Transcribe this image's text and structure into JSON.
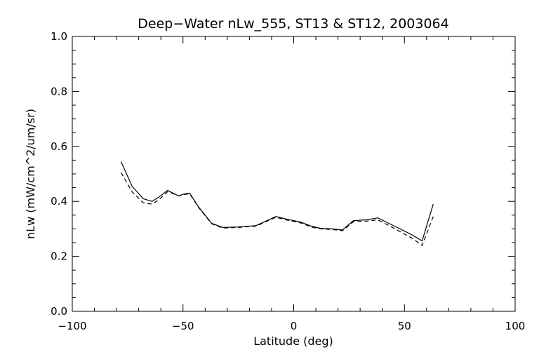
{
  "chart_data": {
    "type": "line",
    "title": "Deep−Water nLw_555, ST13 & ST12, 2003064",
    "xlabel": "Latitude (deg)",
    "ylabel": "nLw (mW/cm^2/um/sr)",
    "xlim": [
      -100,
      100
    ],
    "ylim": [
      0.0,
      1.0
    ],
    "x_ticks": [
      -100,
      -50,
      0,
      50,
      100
    ],
    "x_tick_labels": [
      "−100",
      "−50",
      "0",
      "50",
      "100"
    ],
    "y_ticks": [
      0.0,
      0.2,
      0.4,
      0.6,
      0.8,
      1.0
    ],
    "y_tick_labels": [
      "0.0",
      "0.2",
      "0.4",
      "0.6",
      "0.8",
      "1.0"
    ],
    "grid": false,
    "legend": "none",
    "series": [
      {
        "style": "solid",
        "color": "#000000",
        "points": [
          [
            -78,
            0.545
          ],
          [
            -73,
            0.455
          ],
          [
            -68,
            0.41
          ],
          [
            -64,
            0.4
          ],
          [
            -61,
            0.415
          ],
          [
            -57,
            0.44
          ],
          [
            -55,
            0.432
          ],
          [
            -52,
            0.42
          ],
          [
            -50,
            0.426
          ],
          [
            -47,
            0.43
          ],
          [
            -43,
            0.38
          ],
          [
            -37,
            0.32
          ],
          [
            -32,
            0.305
          ],
          [
            -25,
            0.307
          ],
          [
            -17,
            0.312
          ],
          [
            -12,
            0.33
          ],
          [
            -8,
            0.345
          ],
          [
            -3,
            0.335
          ],
          [
            3,
            0.325
          ],
          [
            8,
            0.31
          ],
          [
            12,
            0.302
          ],
          [
            17,
            0.3
          ],
          [
            22,
            0.296
          ],
          [
            27,
            0.33
          ],
          [
            33,
            0.333
          ],
          [
            38,
            0.34
          ],
          [
            43,
            0.32
          ],
          [
            48,
            0.3
          ],
          [
            53,
            0.28
          ],
          [
            58,
            0.256
          ],
          [
            63,
            0.39
          ]
        ]
      },
      {
        "style": "dashed",
        "color": "#000000",
        "points": [
          [
            -78,
            0.505
          ],
          [
            -73,
            0.435
          ],
          [
            -68,
            0.395
          ],
          [
            -64,
            0.39
          ],
          [
            -61,
            0.405
          ],
          [
            -57,
            0.435
          ],
          [
            -55,
            0.43
          ],
          [
            -52,
            0.42
          ],
          [
            -50,
            0.424
          ],
          [
            -47,
            0.428
          ],
          [
            -43,
            0.378
          ],
          [
            -37,
            0.318
          ],
          [
            -32,
            0.303
          ],
          [
            -25,
            0.305
          ],
          [
            -17,
            0.31
          ],
          [
            -12,
            0.328
          ],
          [
            -8,
            0.342
          ],
          [
            -3,
            0.332
          ],
          [
            3,
            0.322
          ],
          [
            8,
            0.307
          ],
          [
            12,
            0.3
          ],
          [
            17,
            0.298
          ],
          [
            22,
            0.293
          ],
          [
            27,
            0.326
          ],
          [
            33,
            0.328
          ],
          [
            38,
            0.333
          ],
          [
            43,
            0.312
          ],
          [
            48,
            0.29
          ],
          [
            53,
            0.268
          ],
          [
            58,
            0.24
          ],
          [
            63,
            0.345
          ]
        ]
      }
    ]
  }
}
